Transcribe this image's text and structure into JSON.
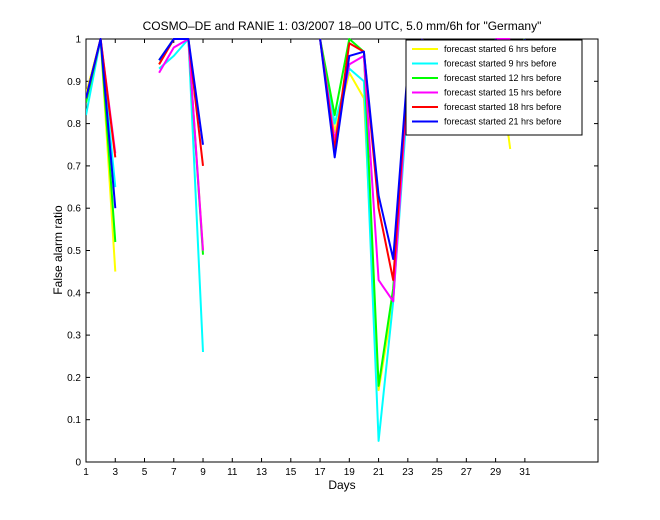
{
  "chart_data": {
    "type": "line",
    "title": "COSMO–DE and RANIE 1: 03/2007 18–00 UTC, 5.0 mm/6h for \"Germany\"",
    "xlabel": "Days",
    "ylabel": "False alarm ratio",
    "xlim": [
      1,
      36
    ],
    "ylim": [
      0,
      1
    ],
    "xticks": [
      1,
      3,
      5,
      7,
      9,
      11,
      13,
      15,
      17,
      19,
      21,
      23,
      25,
      27,
      29,
      31
    ],
    "yticks": [
      0,
      0.1,
      0.2,
      0.3,
      0.4,
      0.5,
      0.6,
      0.7,
      0.8,
      0.9,
      1
    ],
    "ytick_labels": [
      "0",
      "0.1",
      "0.2",
      "0.3",
      "0.4",
      "0.5",
      "0.6",
      "0.7",
      "0.8",
      "0.9",
      "1"
    ],
    "legend_position": "top-right",
    "grid": false,
    "series": [
      {
        "name": "forecast started 6 hrs before",
        "color": "#ffff00",
        "points": [
          [
            1,
            0.87
          ],
          [
            2,
            1.0
          ],
          [
            3,
            0.45
          ],
          null,
          [
            6,
            0.94
          ],
          [
            7,
            1.0
          ],
          [
            8,
            1.0
          ],
          [
            9,
            0.5
          ],
          null,
          [
            17,
            1.0
          ],
          [
            18,
            0.78
          ],
          [
            19,
            0.92
          ],
          [
            20,
            0.86
          ],
          [
            21,
            0.17
          ],
          [
            22,
            0.38
          ],
          [
            23,
            0.88
          ],
          [
            24,
            1.0
          ],
          null,
          [
            29,
            1.0
          ],
          [
            30,
            0.74
          ]
        ]
      },
      {
        "name": "forecast started 9 hrs before",
        "color": "#00ffff",
        "points": [
          [
            1,
            0.82
          ],
          [
            2,
            1.0
          ],
          [
            3,
            0.65
          ],
          null,
          [
            6,
            0.93
          ],
          [
            7,
            0.96
          ],
          [
            8,
            1.0
          ],
          [
            9,
            0.26
          ],
          null,
          [
            17,
            1.0
          ],
          [
            18,
            0.8
          ],
          [
            19,
            0.93
          ],
          [
            20,
            0.9
          ],
          [
            21,
            0.05
          ],
          [
            22,
            0.38
          ],
          [
            23,
            0.86
          ],
          [
            24,
            1.0
          ],
          null,
          [
            29,
            1.0
          ],
          [
            30,
            0.8
          ],
          [
            31,
            1.0
          ]
        ]
      },
      {
        "name": "forecast started 12 hrs before",
        "color": "#00ff00",
        "points": [
          [
            1,
            0.85
          ],
          [
            2,
            1.0
          ],
          [
            3,
            0.52
          ],
          null,
          [
            6,
            0.95
          ],
          [
            7,
            1.0
          ],
          [
            8,
            1.0
          ],
          [
            9,
            0.49
          ],
          null,
          [
            17,
            1.0
          ],
          [
            18,
            0.82
          ],
          [
            19,
            1.0
          ],
          [
            20,
            0.97
          ],
          [
            21,
            0.18
          ],
          [
            22,
            0.41
          ],
          [
            23,
            0.9
          ],
          [
            24,
            1.0
          ],
          null,
          [
            29,
            1.0
          ],
          [
            30,
            0.97
          ],
          [
            31,
            1.0
          ]
        ]
      },
      {
        "name": "forecast started 15 hrs before",
        "color": "#ff00ff",
        "points": [
          [
            1,
            0.86
          ],
          [
            2,
            1.0
          ],
          [
            3,
            0.73
          ],
          null,
          [
            6,
            0.92
          ],
          [
            7,
            0.98
          ],
          [
            8,
            1.0
          ],
          [
            9,
            0.5
          ],
          null,
          [
            17,
            1.0
          ],
          [
            18,
            0.76
          ],
          [
            19,
            0.94
          ],
          [
            20,
            0.96
          ],
          [
            21,
            0.43
          ],
          [
            22,
            0.38
          ],
          [
            23,
            0.9
          ],
          [
            24,
            1.0
          ],
          null,
          [
            29,
            1.0
          ],
          [
            30,
            1.0
          ]
        ]
      },
      {
        "name": "forecast started 18 hrs before",
        "color": "#ff0000",
        "points": [
          [
            1,
            0.86
          ],
          [
            2,
            1.0
          ],
          [
            3,
            0.72
          ],
          null,
          [
            6,
            0.94
          ],
          [
            7,
            1.0
          ],
          [
            8,
            1.0
          ],
          [
            9,
            0.7
          ],
          null,
          [
            17,
            1.0
          ],
          [
            18,
            0.74
          ],
          [
            19,
            0.99
          ],
          [
            20,
            0.97
          ],
          [
            21,
            0.6
          ],
          [
            22,
            0.43
          ],
          [
            23,
            0.92
          ],
          [
            24,
            1.0
          ],
          null,
          [
            29,
            1.0
          ],
          [
            30,
            0.91
          ],
          [
            31,
            1.0
          ]
        ]
      },
      {
        "name": "forecast started 21 hrs before",
        "color": "#0000ff",
        "points": [
          [
            1,
            0.86
          ],
          [
            2,
            1.0
          ],
          [
            3,
            0.6
          ],
          null,
          [
            6,
            0.95
          ],
          [
            7,
            1.0
          ],
          [
            8,
            1.0
          ],
          [
            9,
            0.75
          ],
          null,
          [
            17,
            1.0
          ],
          [
            18,
            0.72
          ],
          [
            19,
            0.96
          ],
          [
            20,
            0.97
          ],
          [
            21,
            0.63
          ],
          [
            22,
            0.48
          ],
          [
            23,
            0.93
          ],
          [
            24,
            1.0
          ],
          null,
          [
            29,
            1.0
          ],
          [
            30,
            0.79
          ],
          [
            31,
            1.0
          ]
        ]
      }
    ]
  }
}
